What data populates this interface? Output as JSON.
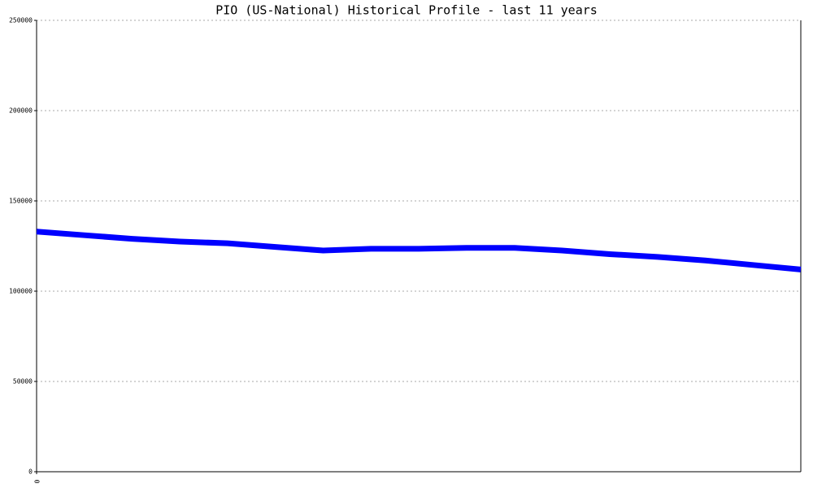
{
  "chart_data": {
    "type": "line",
    "title": "PIO (US-National) Historical Profile - last 11 years",
    "x": [
      0,
      1,
      2,
      3,
      4,
      5,
      6,
      7,
      8,
      9,
      10,
      11,
      12,
      13,
      14,
      15,
      16
    ],
    "xlim": [
      0,
      16
    ],
    "xticks": [
      0
    ],
    "series": [
      {
        "name": "PIO",
        "color": "#0000ff",
        "values": [
          133000,
          131000,
          129000,
          127500,
          126500,
          124500,
          122500,
          123500,
          123500,
          124000,
          124000,
          122500,
          120500,
          119000,
          117000,
          114500,
          112000
        ]
      }
    ],
    "ylim": [
      0,
      250000
    ],
    "yticks": [
      0,
      50000,
      100000,
      150000,
      200000,
      250000
    ],
    "grid": true
  }
}
